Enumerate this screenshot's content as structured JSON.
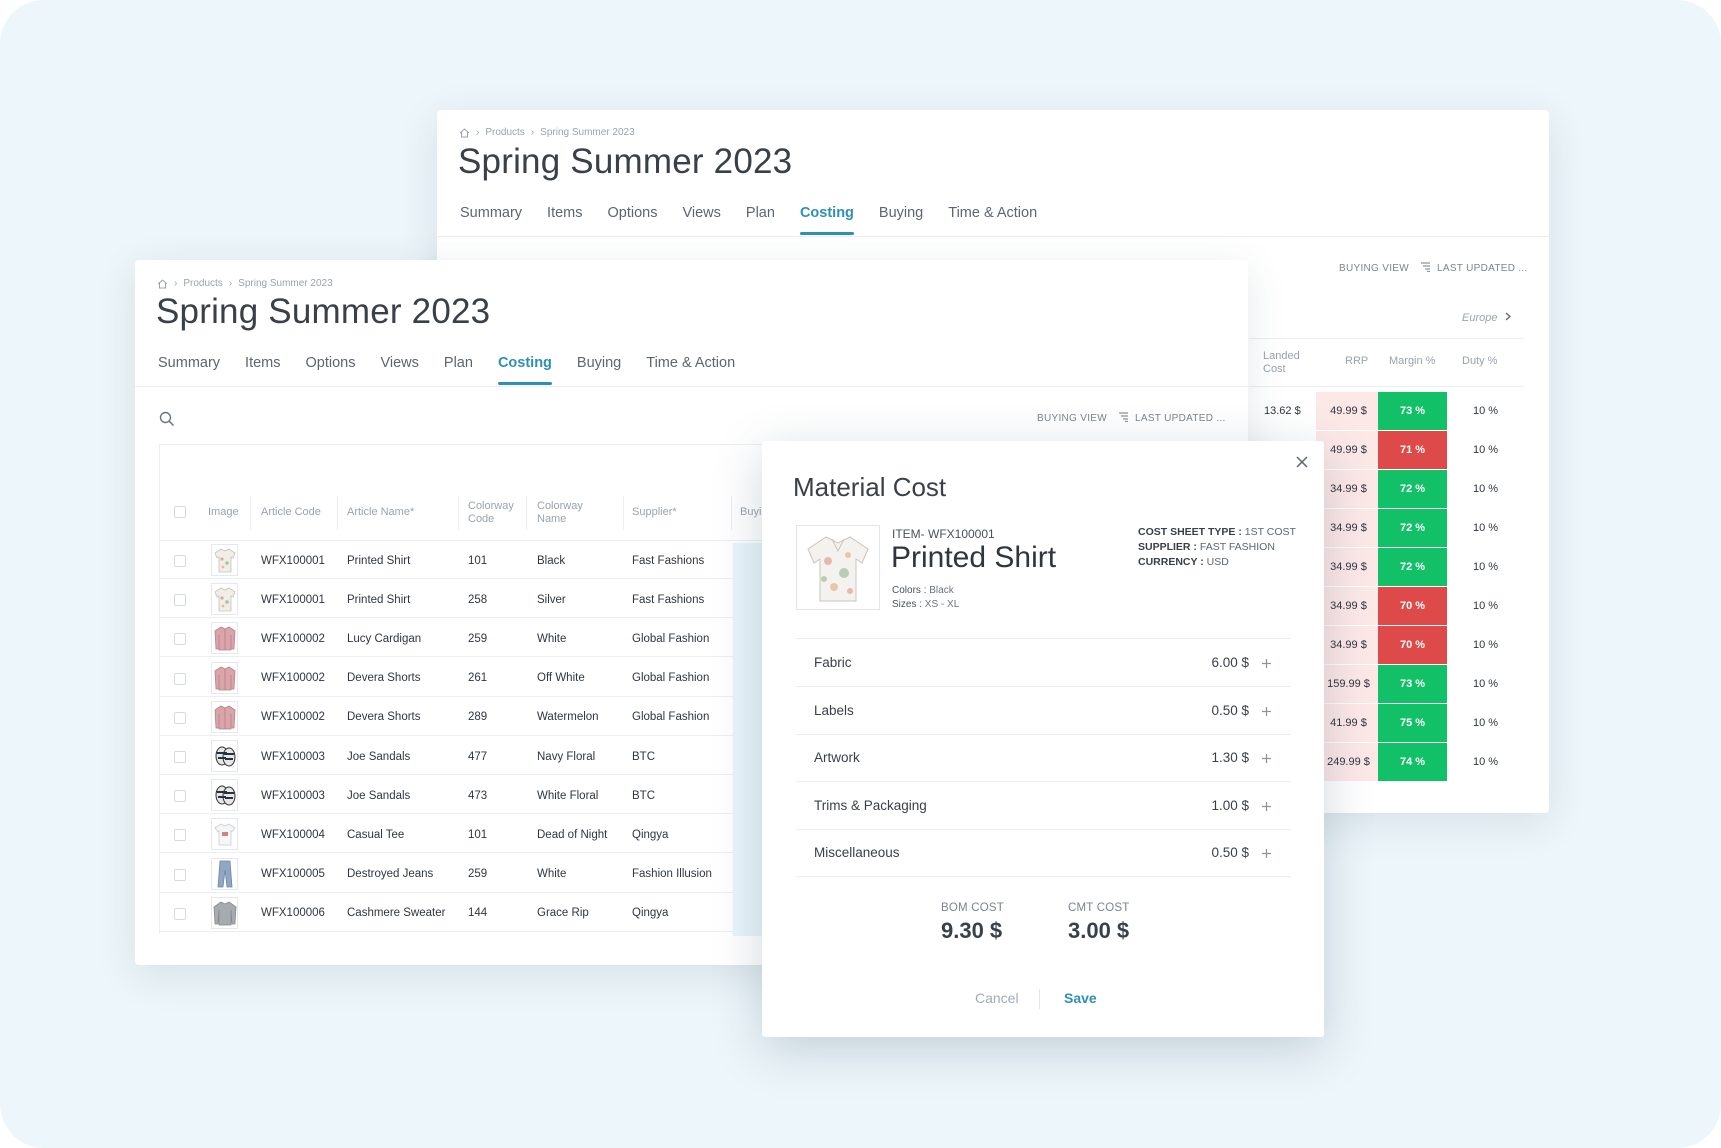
{
  "back_panel": {
    "breadcrumb": [
      "Products",
      "Spring Summer 2023"
    ],
    "title": "Spring Summer 2023",
    "tabs": [
      "Summary",
      "Items",
      "Options",
      "Views",
      "Plan",
      "Costing",
      "Buying",
      "Time & Action"
    ],
    "active_tab": "Costing",
    "buying_view": "BUYING VIEW",
    "last_updated": "LAST UPDATED ...",
    "region": "Europe",
    "columns": {
      "landed_cost": "Landed Cost",
      "rrp": "RRP",
      "margin": "Margin %",
      "duty": "Duty %"
    },
    "rows": [
      {
        "landed": "13.62 $",
        "rrp": "49.99 $",
        "margin": "73 %",
        "margin_status": "good",
        "duty": "10 %"
      },
      {
        "landed": "",
        "rrp": "49.99 $",
        "margin": "71 %",
        "margin_status": "bad",
        "duty": "10 %"
      },
      {
        "landed": "",
        "rrp": "34.99 $",
        "margin": "72 %",
        "margin_status": "good",
        "duty": "10 %"
      },
      {
        "landed": "",
        "rrp": "34.99 $",
        "margin": "72 %",
        "margin_status": "good",
        "duty": "10 %"
      },
      {
        "landed": "",
        "rrp": "34.99 $",
        "margin": "72 %",
        "margin_status": "good",
        "duty": "10 %"
      },
      {
        "landed": "",
        "rrp": "34.99 $",
        "margin": "70 %",
        "margin_status": "bad",
        "duty": "10 %"
      },
      {
        "landed": "",
        "rrp": "34.99 $",
        "margin": "70 %",
        "margin_status": "bad",
        "duty": "10 %"
      },
      {
        "landed": "",
        "rrp": "159.99 $",
        "margin": "73 %",
        "margin_status": "good",
        "duty": "10 %"
      },
      {
        "landed": "",
        "rrp": "41.99 $",
        "margin": "75 %",
        "margin_status": "good",
        "duty": "10 %"
      },
      {
        "landed": "",
        "rrp": "249.99 $",
        "margin": "74 %",
        "margin_status": "good",
        "duty": "10 %"
      }
    ]
  },
  "front_panel": {
    "breadcrumb": [
      "Products",
      "Spring Summer 2023"
    ],
    "title": "Spring Summer 2023",
    "tabs": [
      "Summary",
      "Items",
      "Options",
      "Views",
      "Plan",
      "Costing",
      "Buying",
      "Time & Action"
    ],
    "active_tab": "Costing",
    "buying_view": "BUYING VIEW",
    "last_updated": "LAST UPDATED ...",
    "columns": {
      "image": "Image",
      "article_code": "Article Code",
      "article_name": "Article Name*",
      "colorway_code": "Colorway Code",
      "colorway_name": "Colorway Name",
      "supplier": "Supplier*",
      "buying": "Buyi"
    },
    "rows": [
      {
        "thumb": "floral-shirt-icon",
        "code": "WFX100001",
        "name": "Printed Shirt",
        "cw_code": "101",
        "cw_name": "Black",
        "supplier": "Fast Fashions"
      },
      {
        "thumb": "floral-shirt-icon",
        "code": "WFX100001",
        "name": "Printed Shirt",
        "cw_code": "258",
        "cw_name": "Silver",
        "supplier": "Fast Fashions"
      },
      {
        "thumb": "pink-cardigan-icon",
        "code": "WFX100002",
        "name": "Lucy Cardigan",
        "cw_code": "259",
        "cw_name": "White",
        "supplier": "Global Fashion"
      },
      {
        "thumb": "pink-cardigan-icon",
        "code": "WFX100002",
        "name": "Devera Shorts",
        "cw_code": "261",
        "cw_name": "Off White",
        "supplier": "Global Fashion"
      },
      {
        "thumb": "pink-cardigan-icon",
        "code": "WFX100002",
        "name": "Devera Shorts",
        "cw_code": "289",
        "cw_name": "Watermelon",
        "supplier": "Global Fashion"
      },
      {
        "thumb": "sandals-icon",
        "code": "WFX100003",
        "name": "Joe Sandals",
        "cw_code": "477",
        "cw_name": "Navy Floral",
        "supplier": "BTC"
      },
      {
        "thumb": "sandals-icon",
        "code": "WFX100003",
        "name": "Joe Sandals",
        "cw_code": "473",
        "cw_name": "White Floral",
        "supplier": "BTC"
      },
      {
        "thumb": "tee-icon",
        "code": "WFX100004",
        "name": "Casual Tee",
        "cw_code": "101",
        "cw_name": "Dead of Night",
        "supplier": "Qingya"
      },
      {
        "thumb": "jeans-icon",
        "code": "WFX100005",
        "name": "Destroyed Jeans",
        "cw_code": "259",
        "cw_name": "White",
        "supplier": "Fashion Illusion"
      },
      {
        "thumb": "sweater-icon",
        "code": "WFX100006",
        "name": "Cashmere Sweater",
        "cw_code": "144",
        "cw_name": "Grace Rip",
        "supplier": "Qingya"
      }
    ]
  },
  "modal": {
    "title": "Material Cost",
    "item_code": "ITEM- WFX100001",
    "product_name": "Printed Shirt",
    "colors_label": "Colors :",
    "colors_value": "Black",
    "sizes_label": "Sizes :",
    "sizes_value": "XS - XL",
    "cost_sheet_type_label": "COST SHEET TYPE :",
    "cost_sheet_type_value": "1ST COST",
    "supplier_label": "SUPPLIER :",
    "supplier_value": "FAST FASHION",
    "currency_label": "CURRENCY :",
    "currency_value": "USD",
    "cost_rows": [
      {
        "label": "Fabric",
        "value": "6.00 $"
      },
      {
        "label": "Labels",
        "value": "0.50 $"
      },
      {
        "label": "Artwork",
        "value": "1.30 $"
      },
      {
        "label": "Trims & Packaging",
        "value": "1.00 $"
      },
      {
        "label": "Miscellaneous",
        "value": "0.50 $"
      }
    ],
    "bom_label": "BOM COST",
    "bom_value": "9.30 $",
    "cmt_label": "CMT COST",
    "cmt_value": "3.00 $",
    "cancel_label": "Cancel",
    "save_label": "Save"
  },
  "colors": {
    "accent": "#2e8fb7",
    "margin_good": "#12c167",
    "margin_bad": "#de4a4a",
    "rrp_bg": "#fde8e8",
    "background": "#edf6fa"
  }
}
